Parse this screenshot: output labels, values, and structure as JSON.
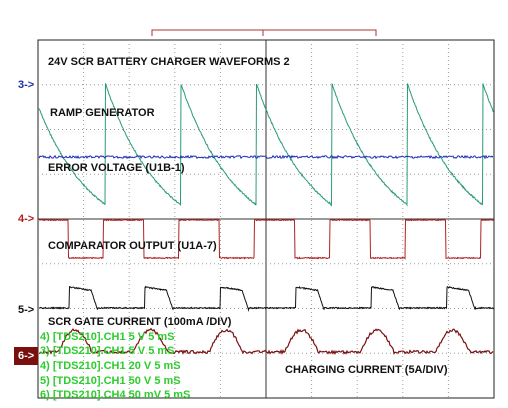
{
  "title": "24V SCR BATTERY CHARGER WAVEFORMS 2",
  "traces": [
    {
      "label": "RAMP GENERATOR"
    },
    {
      "label": "ERROR VOLTAGE (U1B-1)"
    },
    {
      "label": "COMPARATOR OUTPUT (U1A-7)"
    },
    {
      "label": "SCR GATE CURRENT (100mA /DIV)"
    },
    {
      "label": "CHARGING CURRENT (5A/DIV)"
    }
  ],
  "markers": [
    "3->",
    "4->",
    "5->",
    "6->"
  ],
  "settings": [
    "4) [TDS210].CH1  5 V   5 mS",
    "3) [TDS210].CH1  5 V   5 mS",
    "4) [TDS210].CH1  20 V   5 mS",
    "5) [TDS210].CH1  50 V   5 mS",
    "6) [TDS210].CH4  50 mV   5 mS"
  ]
}
